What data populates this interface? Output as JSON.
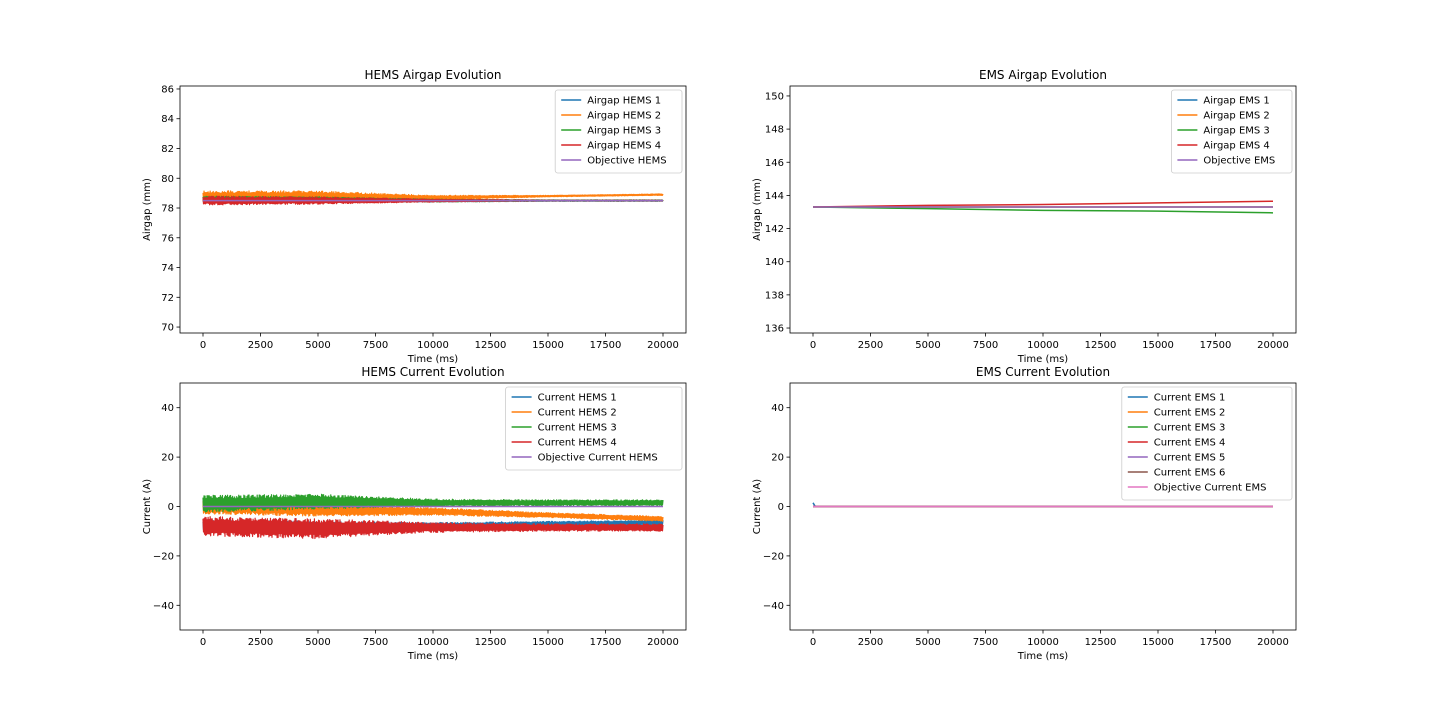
{
  "colors": {
    "blue": "#1f77b4",
    "orange": "#ff7f0e",
    "green": "#2ca02c",
    "red": "#d62728",
    "purple": "#9467bd",
    "brown": "#8c564b",
    "pink": "#e377c2"
  },
  "chart_data": [
    {
      "type": "line",
      "title": "HEMS Airgap Evolution",
      "xlabel": "Time (ms)",
      "ylabel": "Airgap (mm)",
      "xlim": [
        -1000,
        21000
      ],
      "ylim": [
        69.6,
        86.2
      ],
      "xticks": [
        0,
        2500,
        5000,
        7500,
        10000,
        12500,
        15000,
        17500,
        20000
      ],
      "yticks": [
        70,
        72,
        74,
        76,
        78,
        80,
        82,
        84,
        86
      ],
      "legend_position": "top-right",
      "series": [
        {
          "name": "Airgap HEMS 1",
          "color": "#1f77b4",
          "x": [
            0,
            5000,
            10000,
            15000,
            20000
          ],
          "y": [
            78.6,
            78.6,
            78.5,
            78.5,
            78.5
          ],
          "noise": [
            0.25,
            0.2,
            0.1,
            0.05,
            0.05
          ]
        },
        {
          "name": "Airgap HEMS 2",
          "color": "#ff7f0e",
          "x": [
            0,
            5000,
            10000,
            15000,
            20000
          ],
          "y": [
            78.8,
            78.8,
            78.7,
            78.8,
            78.9
          ],
          "noise": [
            0.35,
            0.35,
            0.15,
            0.05,
            0.05
          ]
        },
        {
          "name": "Airgap HEMS 3",
          "color": "#2ca02c",
          "x": [
            0,
            5000,
            10000,
            15000,
            20000
          ],
          "y": [
            78.6,
            78.6,
            78.5,
            78.5,
            78.5
          ],
          "noise": [
            0.2,
            0.15,
            0.1,
            0.05,
            0.05
          ]
        },
        {
          "name": "Airgap HEMS 4",
          "color": "#d62728",
          "x": [
            0,
            5000,
            10000,
            15000,
            20000
          ],
          "y": [
            78.5,
            78.5,
            78.5,
            78.5,
            78.5
          ],
          "noise": [
            0.3,
            0.25,
            0.1,
            0.03,
            0.03
          ]
        },
        {
          "name": "Objective HEMS",
          "color": "#9467bd",
          "x": [
            0,
            20000
          ],
          "y": [
            78.5,
            78.5
          ],
          "noise": [
            0,
            0
          ]
        }
      ]
    },
    {
      "type": "line",
      "title": "EMS Airgap Evolution",
      "xlabel": "Time (ms)",
      "ylabel": "Airgap (mm)",
      "xlim": [
        -1000,
        21000
      ],
      "ylim": [
        135.7,
        150.6
      ],
      "xticks": [
        0,
        2500,
        5000,
        7500,
        10000,
        12500,
        15000,
        17500,
        20000
      ],
      "yticks": [
        136,
        138,
        140,
        142,
        144,
        146,
        148,
        150
      ],
      "legend_position": "top-right",
      "series": [
        {
          "name": "Airgap EMS 1",
          "color": "#1f77b4",
          "x": [
            0,
            20000
          ],
          "y": [
            143.3,
            143.3
          ],
          "noise": [
            0,
            0
          ]
        },
        {
          "name": "Airgap EMS 2",
          "color": "#ff7f0e",
          "x": [
            0,
            20000
          ],
          "y": [
            143.3,
            143.3
          ],
          "noise": [
            0,
            0
          ]
        },
        {
          "name": "Airgap EMS 3",
          "color": "#2ca02c",
          "x": [
            0,
            5000,
            10000,
            15000,
            20000
          ],
          "y": [
            143.3,
            143.2,
            143.1,
            143.05,
            142.95
          ],
          "noise": [
            0,
            0,
            0,
            0,
            0
          ]
        },
        {
          "name": "Airgap EMS 4",
          "color": "#d62728",
          "x": [
            0,
            5000,
            10000,
            15000,
            20000
          ],
          "y": [
            143.3,
            143.4,
            143.45,
            143.55,
            143.65
          ],
          "noise": [
            0,
            0,
            0,
            0,
            0
          ]
        },
        {
          "name": "Objective EMS",
          "color": "#9467bd",
          "x": [
            0,
            20000
          ],
          "y": [
            143.3,
            143.3
          ],
          "noise": [
            0,
            0
          ]
        }
      ]
    },
    {
      "type": "line",
      "title": "HEMS Current Evolution",
      "xlabel": "Time (ms)",
      "ylabel": "Current (A)",
      "xlim": [
        -1000,
        21000
      ],
      "ylim": [
        -50,
        50
      ],
      "xticks": [
        0,
        2500,
        5000,
        7500,
        10000,
        12500,
        15000,
        17500,
        20000
      ],
      "yticks": [
        -40,
        -20,
        0,
        20,
        40
      ],
      "legend_position": "top-right",
      "series": [
        {
          "name": "Current HEMS 1",
          "color": "#1f77b4",
          "x": [
            0,
            5000,
            10000,
            15000,
            20000
          ],
          "y": [
            -8,
            -8.5,
            -8,
            -7,
            -6.5
          ],
          "noise": [
            2.5,
            2.5,
            1.5,
            1,
            1
          ]
        },
        {
          "name": "Current HEMS 2",
          "color": "#ff7f0e",
          "x": [
            0,
            5000,
            10000,
            15000,
            20000
          ],
          "y": [
            0,
            -1.5,
            -2,
            -3.5,
            -5
          ],
          "noise": [
            3,
            2.5,
            1.5,
            1,
            1
          ]
        },
        {
          "name": "Current HEMS 3",
          "color": "#2ca02c",
          "x": [
            0,
            5000,
            10000,
            15000,
            20000
          ],
          "y": [
            1,
            2,
            1.5,
            1.5,
            1.5
          ],
          "noise": [
            3.5,
            3,
            1.5,
            1.2,
            1.2
          ]
        },
        {
          "name": "Current HEMS 4",
          "color": "#d62728",
          "x": [
            0,
            5000,
            10000,
            15000,
            20000
          ],
          "y": [
            -8,
            -9,
            -8.5,
            -8.5,
            -8.5
          ],
          "noise": [
            4,
            4,
            2,
            1.5,
            1.5
          ]
        },
        {
          "name": "Objective Current HEMS",
          "color": "#9467bd",
          "x": [
            0,
            20000
          ],
          "y": [
            0,
            0
          ],
          "noise": [
            0,
            0
          ]
        }
      ]
    },
    {
      "type": "line",
      "title": "EMS Current Evolution",
      "xlabel": "Time (ms)",
      "ylabel": "Current (A)",
      "xlim": [
        -1000,
        21000
      ],
      "ylim": [
        -50,
        50
      ],
      "xticks": [
        0,
        2500,
        5000,
        7500,
        10000,
        12500,
        15000,
        17500,
        20000
      ],
      "yticks": [
        -40,
        -20,
        0,
        20,
        40
      ],
      "legend_position": "top-right",
      "series": [
        {
          "name": "Current EMS 1",
          "color": "#1f77b4",
          "x": [
            0,
            100,
            200,
            20000
          ],
          "y": [
            1.5,
            0,
            0,
            0
          ],
          "noise": [
            0,
            0,
            0,
            0
          ]
        },
        {
          "name": "Current EMS 2",
          "color": "#ff7f0e",
          "x": [
            0,
            20000
          ],
          "y": [
            0,
            0
          ],
          "noise": [
            0,
            0
          ]
        },
        {
          "name": "Current EMS 3",
          "color": "#2ca02c",
          "x": [
            0,
            20000
          ],
          "y": [
            0,
            0
          ],
          "noise": [
            0,
            0
          ]
        },
        {
          "name": "Current EMS 4",
          "color": "#d62728",
          "x": [
            0,
            20000
          ],
          "y": [
            0,
            0
          ],
          "noise": [
            0,
            0
          ]
        },
        {
          "name": "Current EMS 5",
          "color": "#9467bd",
          "x": [
            0,
            20000
          ],
          "y": [
            0,
            0
          ],
          "noise": [
            0,
            0
          ]
        },
        {
          "name": "Current EMS 6",
          "color": "#8c564b",
          "x": [
            0,
            20000
          ],
          "y": [
            0,
            0
          ],
          "noise": [
            0,
            0
          ]
        },
        {
          "name": "Objective Current EMS",
          "color": "#e377c2",
          "x": [
            0,
            20000
          ],
          "y": [
            0,
            0
          ],
          "noise": [
            0,
            0
          ]
        }
      ]
    }
  ]
}
